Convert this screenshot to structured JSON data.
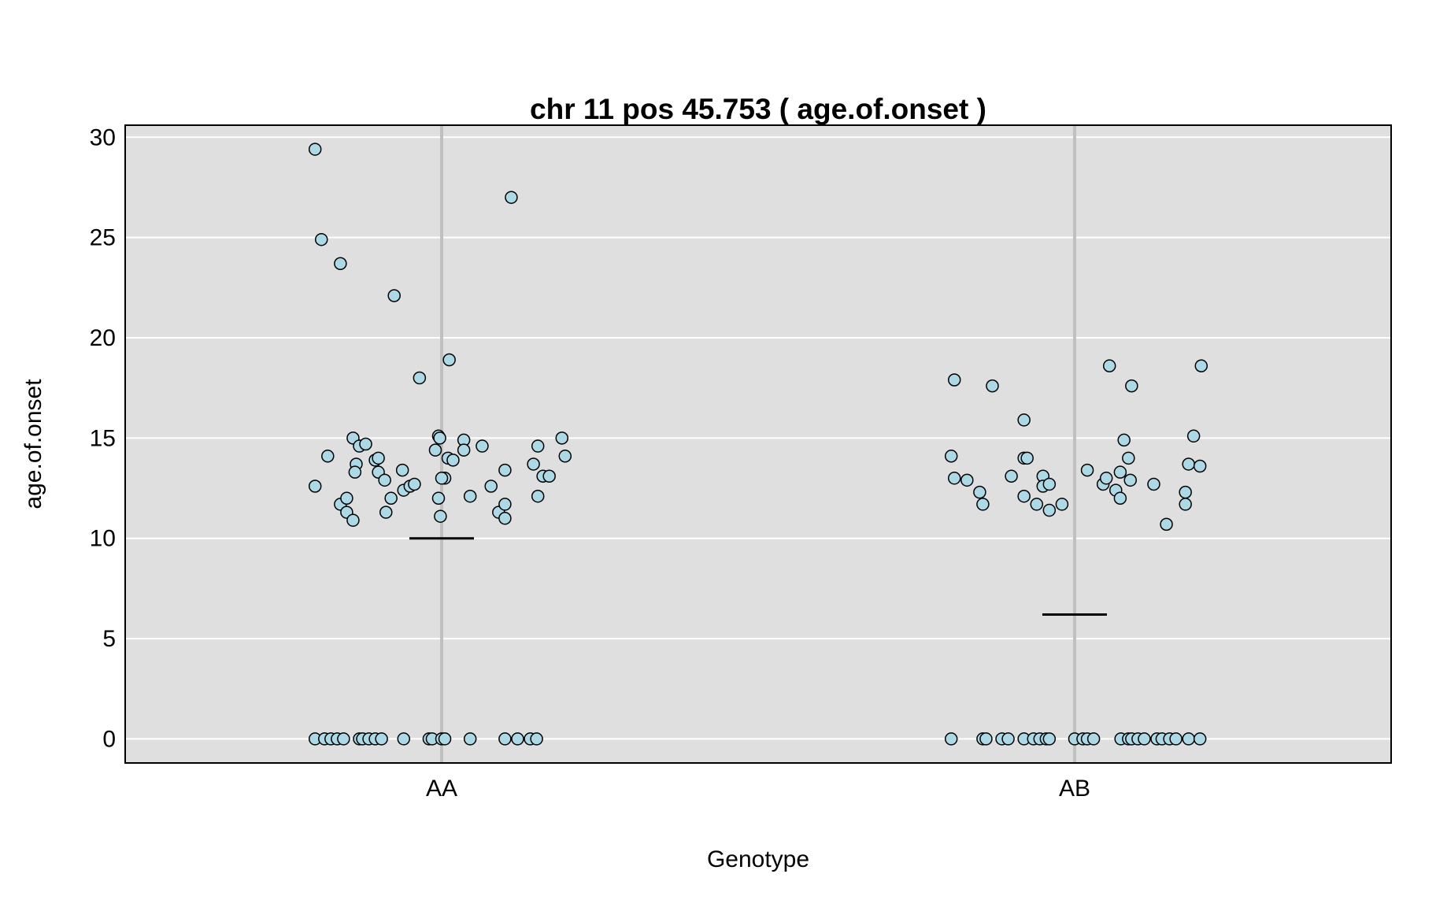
{
  "chart_data": {
    "type": "scatter",
    "title": "chr 11 pos 45.753 ( age.of.onset )",
    "xlabel": "Genotype",
    "ylabel": "age.of.onset",
    "categories": [
      "AA",
      "AB"
    ],
    "ylim": [
      -1.2,
      30.6
    ],
    "yticks": [
      "0",
      "5",
      "10",
      "15",
      "20",
      "25",
      "30"
    ],
    "grid": true,
    "colors": {
      "panel": "#dfdfdf",
      "gridline": "#ffffff",
      "category_line": "#c0c0c0",
      "point_fill": "#add8e6",
      "point_stroke": "#000000",
      "mean_line": "#000000"
    },
    "series": [
      {
        "category": "AA",
        "mean": 10.0,
        "points": [
          {
            "x": -0.2,
            "y": 29.4
          },
          {
            "x": -0.19,
            "y": 24.9
          },
          {
            "x": -0.16,
            "y": 23.7
          },
          {
            "x": -0.075,
            "y": 22.1
          },
          {
            "x": 0.11,
            "y": 27.0
          },
          {
            "x": 0.012,
            "y": 18.9
          },
          {
            "x": -0.035,
            "y": 18.0
          },
          {
            "x": -0.2,
            "y": 12.6
          },
          {
            "x": -0.18,
            "y": 14.1
          },
          {
            "x": -0.14,
            "y": 15.0
          },
          {
            "x": -0.13,
            "y": 14.6
          },
          {
            "x": -0.12,
            "y": 14.7
          },
          {
            "x": -0.135,
            "y": 13.7
          },
          {
            "x": -0.137,
            "y": 13.3
          },
          {
            "x": -0.105,
            "y": 13.9
          },
          {
            "x": -0.1,
            "y": 14.0
          },
          {
            "x": -0.1,
            "y": 13.3
          },
          {
            "x": -0.09,
            "y": 12.9
          },
          {
            "x": -0.08,
            "y": 12.0
          },
          {
            "x": -0.062,
            "y": 13.4
          },
          {
            "x": -0.06,
            "y": 12.4
          },
          {
            "x": -0.05,
            "y": 12.6
          },
          {
            "x": -0.043,
            "y": 12.7
          },
          {
            "x": -0.16,
            "y": 11.7
          },
          {
            "x": -0.15,
            "y": 12.0
          },
          {
            "x": -0.15,
            "y": 11.3
          },
          {
            "x": -0.14,
            "y": 10.9
          },
          {
            "x": -0.088,
            "y": 11.3
          },
          {
            "x": -0.01,
            "y": 14.4
          },
          {
            "x": -0.005,
            "y": 15.1
          },
          {
            "x": -0.003,
            "y": 15.0
          },
          {
            "x": 0.01,
            "y": 14.0
          },
          {
            "x": 0.018,
            "y": 13.9
          },
          {
            "x": 0.005,
            "y": 13.0
          },
          {
            "x": 0.0,
            "y": 13.0
          },
          {
            "x": -0.005,
            "y": 12.0
          },
          {
            "x": -0.002,
            "y": 11.1
          },
          {
            "x": 0.035,
            "y": 14.9
          },
          {
            "x": 0.035,
            "y": 14.4
          },
          {
            "x": 0.045,
            "y": 12.1
          },
          {
            "x": 0.064,
            "y": 14.6
          },
          {
            "x": 0.078,
            "y": 12.6
          },
          {
            "x": 0.09,
            "y": 11.3
          },
          {
            "x": 0.1,
            "y": 13.4
          },
          {
            "x": 0.1,
            "y": 11.7
          },
          {
            "x": 0.1,
            "y": 11.0
          },
          {
            "x": 0.145,
            "y": 13.7
          },
          {
            "x": 0.152,
            "y": 14.6
          },
          {
            "x": 0.16,
            "y": 13.1
          },
          {
            "x": 0.152,
            "y": 12.1
          },
          {
            "x": 0.17,
            "y": 13.1
          },
          {
            "x": 0.19,
            "y": 15.0
          },
          {
            "x": 0.195,
            "y": 14.1
          },
          {
            "x": -0.2,
            "y": 0
          },
          {
            "x": -0.185,
            "y": 0
          },
          {
            "x": -0.175,
            "y": 0
          },
          {
            "x": -0.165,
            "y": 0
          },
          {
            "x": -0.155,
            "y": 0
          },
          {
            "x": -0.13,
            "y": 0
          },
          {
            "x": -0.125,
            "y": 0
          },
          {
            "x": -0.115,
            "y": 0
          },
          {
            "x": -0.105,
            "y": 0
          },
          {
            "x": -0.095,
            "y": 0
          },
          {
            "x": -0.06,
            "y": 0
          },
          {
            "x": -0.02,
            "y": 0
          },
          {
            "x": -0.015,
            "y": 0
          },
          {
            "x": 0.0,
            "y": 0
          },
          {
            "x": 0.005,
            "y": 0
          },
          {
            "x": 0.045,
            "y": 0
          },
          {
            "x": 0.1,
            "y": 0
          },
          {
            "x": 0.12,
            "y": 0
          },
          {
            "x": 0.14,
            "y": 0
          },
          {
            "x": 0.15,
            "y": 0
          }
        ]
      },
      {
        "category": "AB",
        "mean": 6.2,
        "points": [
          {
            "x": -0.19,
            "y": 17.9
          },
          {
            "x": -0.13,
            "y": 17.6
          },
          {
            "x": -0.08,
            "y": 15.9
          },
          {
            "x": 0.055,
            "y": 18.6
          },
          {
            "x": 0.09,
            "y": 17.6
          },
          {
            "x": 0.2,
            "y": 18.6
          },
          {
            "x": -0.195,
            "y": 14.1
          },
          {
            "x": -0.19,
            "y": 13.0
          },
          {
            "x": -0.17,
            "y": 12.9
          },
          {
            "x": -0.15,
            "y": 12.3
          },
          {
            "x": -0.145,
            "y": 11.7
          },
          {
            "x": -0.1,
            "y": 13.1
          },
          {
            "x": -0.08,
            "y": 14.0
          },
          {
            "x": -0.075,
            "y": 14.0
          },
          {
            "x": -0.08,
            "y": 12.1
          },
          {
            "x": -0.06,
            "y": 11.7
          },
          {
            "x": -0.05,
            "y": 13.1
          },
          {
            "x": -0.05,
            "y": 12.6
          },
          {
            "x": -0.04,
            "y": 12.7
          },
          {
            "x": -0.04,
            "y": 11.4
          },
          {
            "x": -0.02,
            "y": 11.7
          },
          {
            "x": 0.02,
            "y": 13.4
          },
          {
            "x": 0.045,
            "y": 12.7
          },
          {
            "x": 0.05,
            "y": 13.0
          },
          {
            "x": 0.065,
            "y": 12.4
          },
          {
            "x": 0.072,
            "y": 13.3
          },
          {
            "x": 0.072,
            "y": 12.0
          },
          {
            "x": 0.078,
            "y": 14.9
          },
          {
            "x": 0.085,
            "y": 14.0
          },
          {
            "x": 0.088,
            "y": 12.9
          },
          {
            "x": 0.125,
            "y": 12.7
          },
          {
            "x": 0.145,
            "y": 10.7
          },
          {
            "x": 0.175,
            "y": 12.3
          },
          {
            "x": 0.175,
            "y": 11.7
          },
          {
            "x": 0.18,
            "y": 13.7
          },
          {
            "x": 0.188,
            "y": 15.1
          },
          {
            "x": 0.198,
            "y": 13.6
          },
          {
            "x": -0.195,
            "y": 0
          },
          {
            "x": -0.145,
            "y": 0
          },
          {
            "x": -0.14,
            "y": 0
          },
          {
            "x": -0.115,
            "y": 0
          },
          {
            "x": -0.105,
            "y": 0
          },
          {
            "x": -0.08,
            "y": 0
          },
          {
            "x": -0.065,
            "y": 0
          },
          {
            "x": -0.055,
            "y": 0
          },
          {
            "x": -0.045,
            "y": 0
          },
          {
            "x": -0.04,
            "y": 0
          },
          {
            "x": 0.0,
            "y": 0
          },
          {
            "x": 0.013,
            "y": 0
          },
          {
            "x": 0.02,
            "y": 0
          },
          {
            "x": 0.03,
            "y": 0
          },
          {
            "x": 0.073,
            "y": 0
          },
          {
            "x": 0.085,
            "y": 0
          },
          {
            "x": 0.09,
            "y": 0
          },
          {
            "x": 0.1,
            "y": 0
          },
          {
            "x": 0.11,
            "y": 0
          },
          {
            "x": 0.13,
            "y": 0
          },
          {
            "x": 0.138,
            "y": 0
          },
          {
            "x": 0.15,
            "y": 0
          },
          {
            "x": 0.16,
            "y": 0
          },
          {
            "x": 0.18,
            "y": 0
          },
          {
            "x": 0.198,
            "y": 0
          }
        ]
      }
    ]
  }
}
